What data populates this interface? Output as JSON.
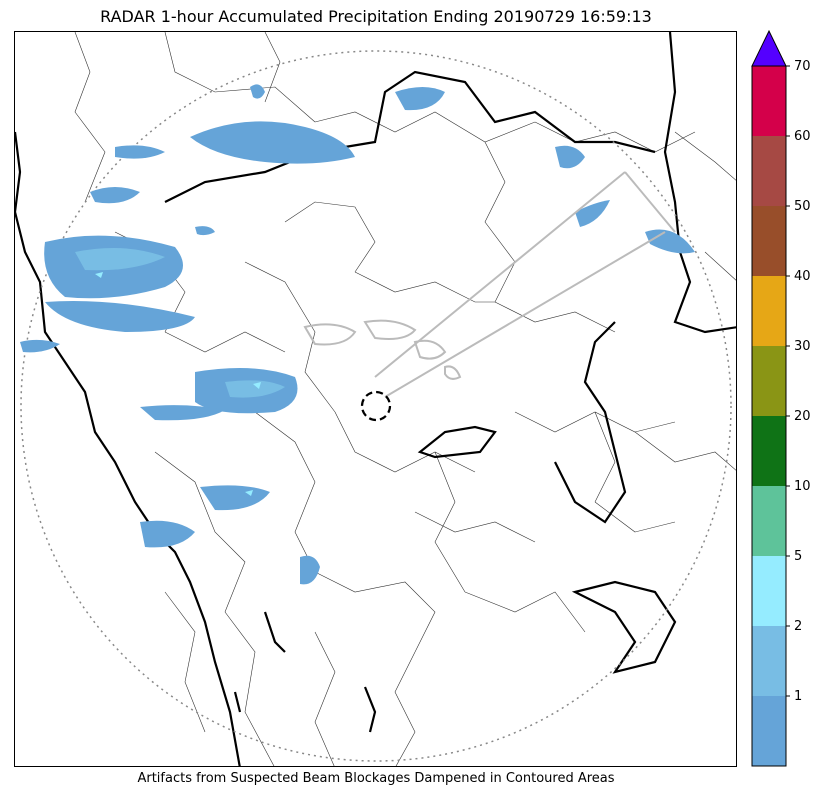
{
  "title": "RADAR 1-hour Accumulated Precipitation Ending 20190729 16:59:13",
  "footer": "Artifacts from Suspected Beam Blockages Dampened in Contoured Areas",
  "colorbar": {
    "ticks": [
      "1",
      "2",
      "5",
      "10",
      "20",
      "30",
      "40",
      "50",
      "60",
      "70"
    ],
    "colors": [
      "#65a4d8",
      "#78bde4",
      "#95ecff",
      "#5ec39a",
      "#0f7316",
      "#8a9515",
      "#e6a716",
      "#984e2a",
      "#a64944",
      "#d4004a"
    ],
    "extend_color": "#5400ff"
  },
  "precip_colors": {
    "light": "#65a4d8",
    "medium": "#78bde4",
    "heavy": "#95ecff"
  }
}
